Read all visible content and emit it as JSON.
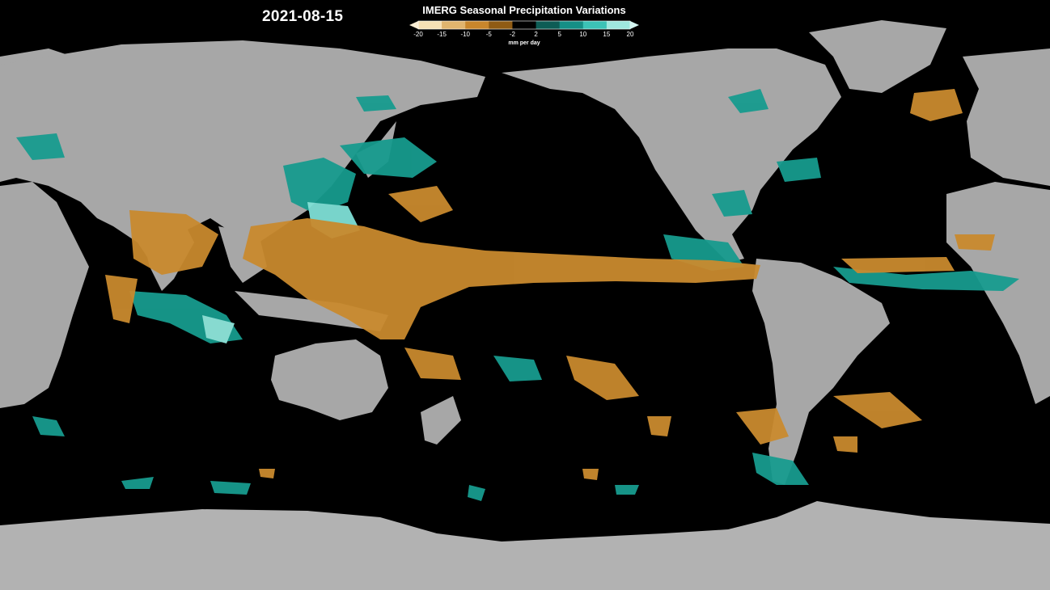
{
  "map": {
    "date": "2021-08-15",
    "projection": "equirectangular",
    "center_longitude": 180
  },
  "legend": {
    "title": "IMERG Seasonal Precipitation Variations",
    "unit": "mm per day",
    "ticks": [
      "-20",
      "-15",
      "-10",
      "-5",
      "-2",
      "2",
      "5",
      "10",
      "15",
      "20"
    ],
    "colors": [
      "#f6e0b5",
      "#e0b46e",
      "#c8862c",
      "#8f5b14",
      "#000000",
      "#0d5c55",
      "#158f86",
      "#3cc2b6",
      "#9fe7df"
    ],
    "arrow_low_color": "#fbeed4",
    "arrow_high_color": "#d4f6f2"
  },
  "colors": {
    "ocean": "#000000",
    "land": "#a9a9a9",
    "ice": "#b4b4b4",
    "drier": "#c8862c",
    "wetter": "#1a9e91"
  }
}
